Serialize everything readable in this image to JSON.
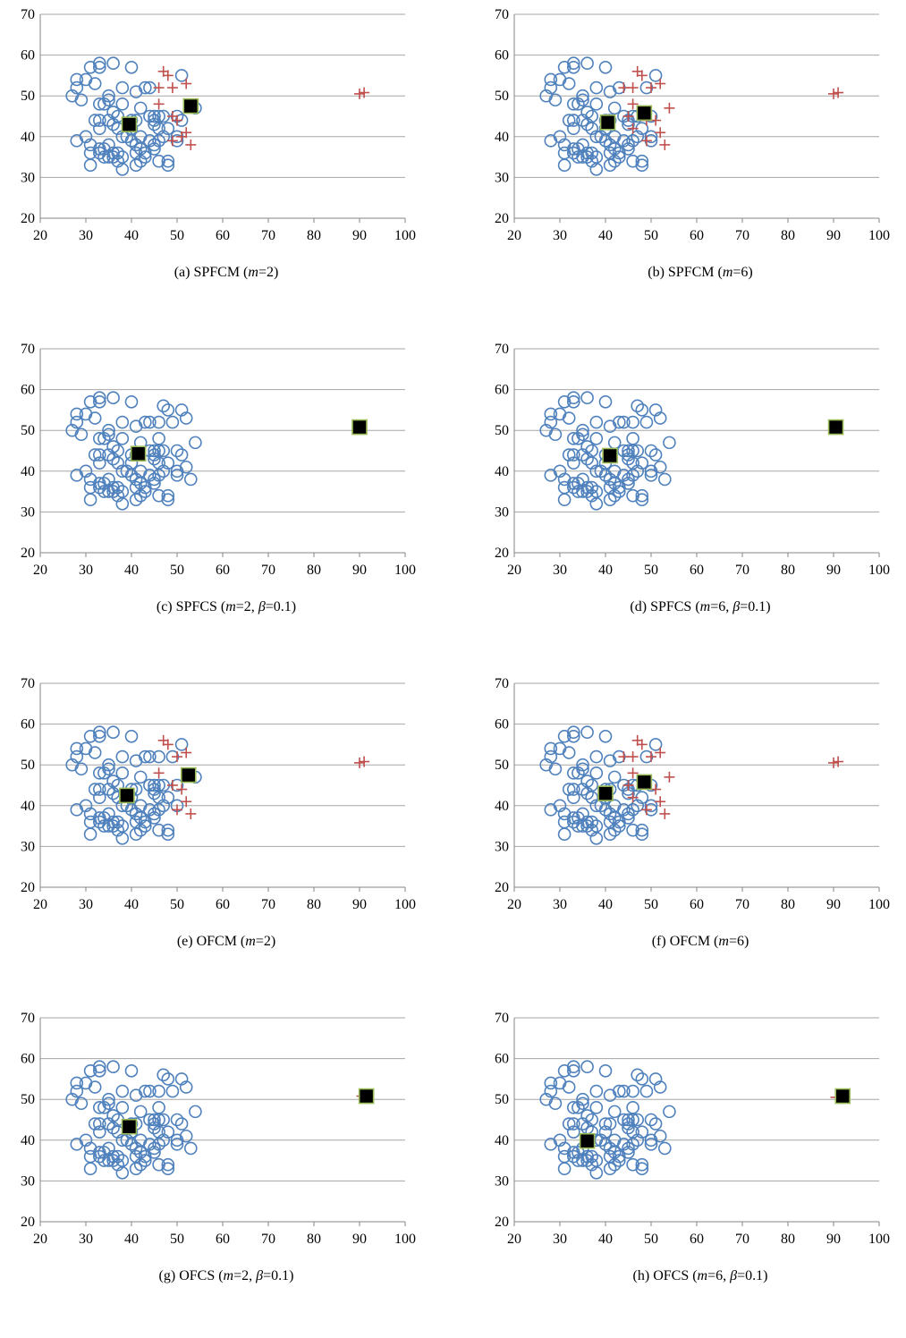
{
  "chart_data": [
    {
      "type": "scatter",
      "title": "",
      "caption": {
        "label": "(a)",
        "method": "SPFCM",
        "m": "2",
        "beta": null
      },
      "xlim": [
        20,
        100
      ],
      "ylim": [
        20,
        70
      ],
      "xticks": [
        20,
        30,
        40,
        50,
        60,
        70,
        80,
        90,
        100
      ],
      "yticks": [
        20,
        30,
        40,
        50,
        60,
        70
      ],
      "grid": "horizontal",
      "outliers_marked": [
        [
          47,
          56
        ],
        [
          48,
          55
        ],
        [
          46,
          52
        ],
        [
          49,
          52
        ],
        [
          52,
          53
        ],
        [
          46,
          48
        ],
        [
          49,
          45
        ],
        [
          50,
          44
        ],
        [
          51,
          40
        ],
        [
          49,
          39
        ],
        [
          52,
          41
        ],
        [
          53,
          38
        ],
        [
          90,
          50.5
        ],
        [
          91,
          50.8
        ]
      ],
      "centroids": [
        [
          39.5,
          43
        ],
        [
          53,
          47.5
        ]
      ]
    },
    {
      "type": "scatter",
      "title": "",
      "caption": {
        "label": "(b)",
        "method": "SPFCM",
        "m": "6",
        "beta": null
      },
      "xlim": [
        20,
        100
      ],
      "ylim": [
        20,
        70
      ],
      "xticks": [
        20,
        30,
        40,
        50,
        60,
        70,
        80,
        90,
        100
      ],
      "yticks": [
        20,
        30,
        40,
        50,
        60,
        70
      ],
      "grid": "horizontal",
      "outliers_marked": [
        [
          47,
          56
        ],
        [
          48,
          55
        ],
        [
          44,
          52
        ],
        [
          46,
          52
        ],
        [
          50,
          52
        ],
        [
          52,
          53
        ],
        [
          46,
          48
        ],
        [
          54,
          47
        ],
        [
          45,
          45
        ],
        [
          46,
          42
        ],
        [
          49,
          44
        ],
        [
          51,
          44
        ],
        [
          49,
          39
        ],
        [
          52,
          41
        ],
        [
          53,
          38
        ],
        [
          90,
          50.5
        ],
        [
          91,
          50.8
        ]
      ],
      "centroids": [
        [
          40.5,
          43.5
        ],
        [
          48.5,
          45.8
        ]
      ]
    },
    {
      "type": "scatter",
      "title": "",
      "caption": {
        "label": "(c)",
        "method": "SPFCS",
        "m": "2",
        "beta": "0.1"
      },
      "xlim": [
        20,
        100
      ],
      "ylim": [
        20,
        70
      ],
      "xticks": [
        20,
        30,
        40,
        50,
        60,
        70,
        80,
        90,
        100
      ],
      "yticks": [
        20,
        30,
        40,
        50,
        60,
        70
      ],
      "grid": "horizontal",
      "outliers_marked": [],
      "centroids": [
        [
          41.5,
          44.3
        ],
        [
          90,
          50.8
        ]
      ]
    },
    {
      "type": "scatter",
      "title": "",
      "caption": {
        "label": "(d)",
        "method": "SPFCS",
        "m": "6",
        "beta": "0.1"
      },
      "xlim": [
        20,
        100
      ],
      "ylim": [
        20,
        70
      ],
      "xticks": [
        20,
        30,
        40,
        50,
        60,
        70,
        80,
        90,
        100
      ],
      "yticks": [
        20,
        30,
        40,
        50,
        60,
        70
      ],
      "grid": "horizontal",
      "outliers_marked": [],
      "centroids": [
        [
          41,
          43.8
        ],
        [
          90.5,
          50.8
        ]
      ]
    },
    {
      "type": "scatter",
      "title": "",
      "caption": {
        "label": "(e)",
        "method": "OFCM",
        "m": "2",
        "beta": null
      },
      "xlim": [
        20,
        100
      ],
      "ylim": [
        20,
        70
      ],
      "xticks": [
        20,
        30,
        40,
        50,
        60,
        70,
        80,
        90,
        100
      ],
      "yticks": [
        20,
        30,
        40,
        50,
        60,
        70
      ],
      "grid": "horizontal",
      "outliers_marked": [
        [
          47,
          56
        ],
        [
          48,
          55
        ],
        [
          50,
          52
        ],
        [
          52,
          53
        ],
        [
          46,
          48
        ],
        [
          49,
          45
        ],
        [
          51,
          44
        ],
        [
          50,
          39
        ],
        [
          52,
          41
        ],
        [
          53,
          38
        ],
        [
          90,
          50.5
        ],
        [
          91,
          50.8
        ]
      ],
      "centroids": [
        [
          39,
          42.5
        ],
        [
          52.5,
          47.5
        ]
      ]
    },
    {
      "type": "scatter",
      "title": "",
      "caption": {
        "label": "(f)",
        "method": "OFCM",
        "m": "6",
        "beta": null
      },
      "xlim": [
        20,
        100
      ],
      "ylim": [
        20,
        70
      ],
      "xticks": [
        20,
        30,
        40,
        50,
        60,
        70,
        80,
        90,
        100
      ],
      "yticks": [
        20,
        30,
        40,
        50,
        60,
        70
      ],
      "grid": "horizontal",
      "outliers_marked": [
        [
          47,
          56
        ],
        [
          48,
          55
        ],
        [
          44,
          52
        ],
        [
          46,
          52
        ],
        [
          50,
          52
        ],
        [
          52,
          53
        ],
        [
          46,
          48
        ],
        [
          54,
          47
        ],
        [
          45,
          45
        ],
        [
          46,
          42
        ],
        [
          51,
          44
        ],
        [
          49,
          39
        ],
        [
          52,
          41
        ],
        [
          53,
          38
        ],
        [
          90,
          50.5
        ],
        [
          91,
          50.8
        ]
      ],
      "centroids": [
        [
          40,
          43
        ],
        [
          48.5,
          45.8
        ]
      ]
    },
    {
      "type": "scatter",
      "title": "",
      "caption": {
        "label": "(g)",
        "method": "OFCS",
        "m": "2",
        "beta": "0.1"
      },
      "xlim": [
        20,
        100
      ],
      "ylim": [
        20,
        70
      ],
      "xticks": [
        20,
        30,
        40,
        50,
        60,
        70,
        80,
        90,
        100
      ],
      "yticks": [
        20,
        30,
        40,
        50,
        60,
        70
      ],
      "grid": "horizontal",
      "outliers_marked": [
        [
          90.5,
          50.8
        ]
      ],
      "centroids": [
        [
          39.5,
          43.3
        ],
        [
          91.5,
          50.8
        ]
      ]
    },
    {
      "type": "scatter",
      "title": "",
      "caption": {
        "label": "(h)",
        "method": "OFCS",
        "m": "6",
        "beta": "0.1"
      },
      "xlim": [
        20,
        100
      ],
      "ylim": [
        20,
        70
      ],
      "xticks": [
        20,
        30,
        40,
        50,
        60,
        70,
        80,
        90,
        100
      ],
      "yticks": [
        20,
        30,
        40,
        50,
        60,
        70
      ],
      "grid": "horizontal",
      "outliers_marked": [
        [
          90.5,
          50.5
        ]
      ],
      "centroids": [
        [
          36,
          39.8
        ],
        [
          92,
          50.8
        ]
      ]
    }
  ],
  "shared_points": [
    [
      27,
      50
    ],
    [
      28,
      54
    ],
    [
      28,
      52
    ],
    [
      29,
      49
    ],
    [
      30,
      54
    ],
    [
      31,
      57
    ],
    [
      32,
      53
    ],
    [
      33,
      57
    ],
    [
      33,
      58
    ],
    [
      36,
      58
    ],
    [
      40,
      57
    ],
    [
      28,
      39
    ],
    [
      30,
      40
    ],
    [
      31,
      38
    ],
    [
      31,
      36
    ],
    [
      31,
      33
    ],
    [
      32,
      44
    ],
    [
      33,
      44
    ],
    [
      33,
      48
    ],
    [
      34,
      48
    ],
    [
      35,
      50
    ],
    [
      35,
      49
    ],
    [
      33,
      42
    ],
    [
      35,
      44
    ],
    [
      36,
      46
    ],
    [
      37,
      45
    ],
    [
      38,
      48
    ],
    [
      38,
      52
    ],
    [
      36,
      43
    ],
    [
      37,
      42
    ],
    [
      35,
      38
    ],
    [
      34,
      37
    ],
    [
      33,
      37
    ],
    [
      33,
      36
    ],
    [
      34,
      35
    ],
    [
      35,
      35
    ],
    [
      36,
      36
    ],
    [
      36,
      35
    ],
    [
      37,
      36
    ],
    [
      38,
      35
    ],
    [
      37,
      34
    ],
    [
      38,
      32
    ],
    [
      38,
      40
    ],
    [
      39,
      40
    ],
    [
      40,
      39
    ],
    [
      40,
      42
    ],
    [
      41,
      38
    ],
    [
      41,
      36
    ],
    [
      42,
      40
    ],
    [
      42,
      37
    ],
    [
      42,
      34
    ],
    [
      41,
      33
    ],
    [
      43,
      35
    ],
    [
      43,
      36
    ],
    [
      40,
      44
    ],
    [
      41,
      44
    ],
    [
      42,
      47
    ],
    [
      41,
      51
    ],
    [
      43,
      52
    ],
    [
      44,
      52
    ],
    [
      46,
      52
    ],
    [
      44,
      45
    ],
    [
      45,
      45
    ],
    [
      45,
      44
    ],
    [
      45,
      43
    ],
    [
      46,
      42
    ],
    [
      46,
      45
    ],
    [
      47,
      45
    ],
    [
      44,
      39
    ],
    [
      45,
      38
    ],
    [
      46,
      39
    ],
    [
      47,
      40
    ],
    [
      48,
      42
    ],
    [
      45,
      37
    ],
    [
      46,
      34
    ],
    [
      48,
      34
    ],
    [
      48,
      33
    ],
    [
      46,
      48
    ],
    [
      47,
      56
    ],
    [
      48,
      55
    ],
    [
      49,
      52
    ],
    [
      50,
      45
    ],
    [
      51,
      44
    ],
    [
      51,
      55
    ],
    [
      52,
      53
    ],
    [
      54,
      47
    ],
    [
      50,
      40
    ],
    [
      50,
      39
    ],
    [
      52,
      41
    ],
    [
      53,
      38
    ]
  ]
}
